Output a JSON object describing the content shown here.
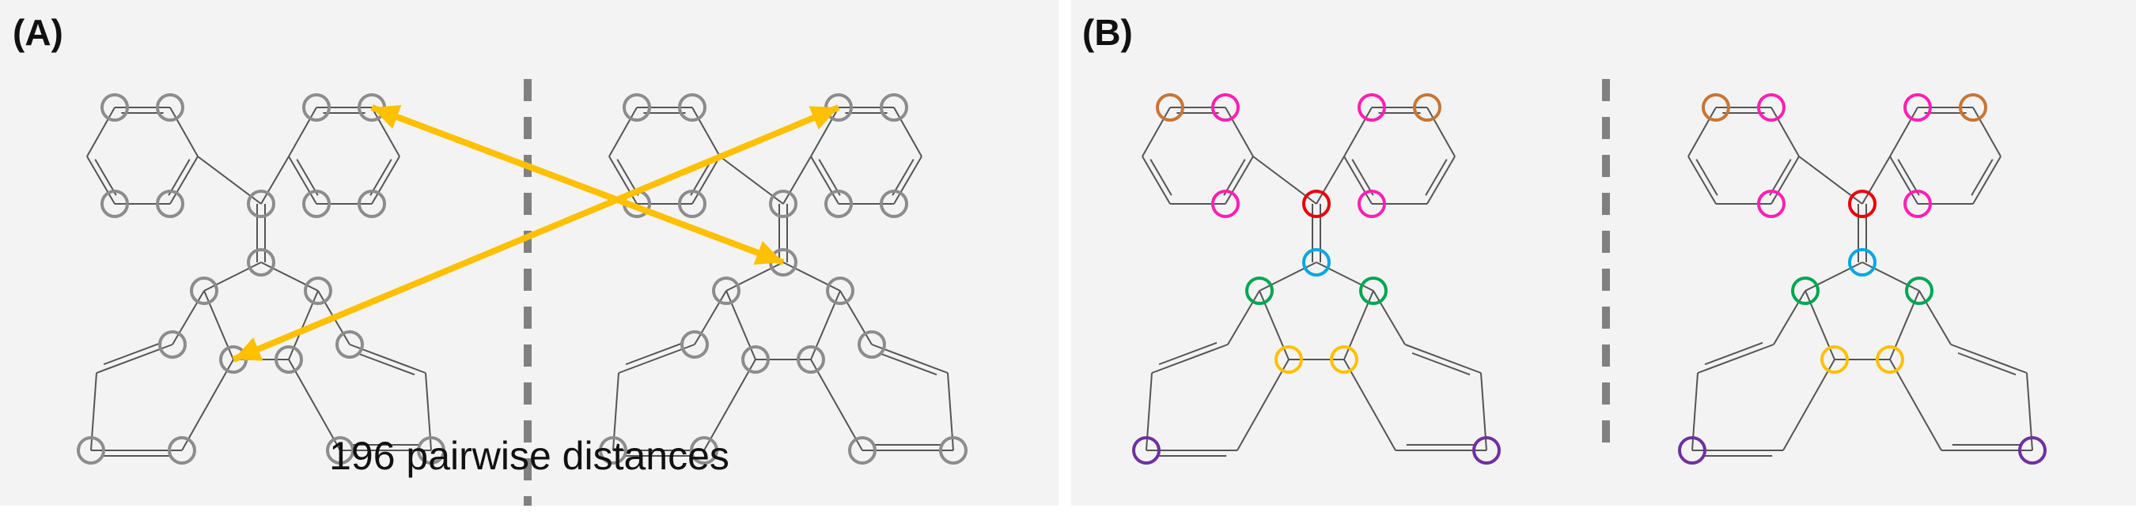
{
  "panel_a": {
    "label": "(A)",
    "caption": "196 pairwise distances"
  },
  "panel_b": {
    "label": "(B)"
  },
  "colors": {
    "background": "#f3f3f3",
    "bond": "#555555",
    "atom_gray": "#8c8c8c",
    "arrow": "#ffc000",
    "divider": "#808080",
    "orange": "#c87533",
    "magenta": "#ff1fb4",
    "red": "#e8000b",
    "cyan": "#00a7e1",
    "green": "#00a651",
    "yellow": "#ffc000",
    "purple": "#7030a0"
  },
  "atom_groups": [
    "orange",
    "magenta",
    "magenta",
    "red",
    "cyan",
    "green",
    "yellow",
    "purple"
  ]
}
